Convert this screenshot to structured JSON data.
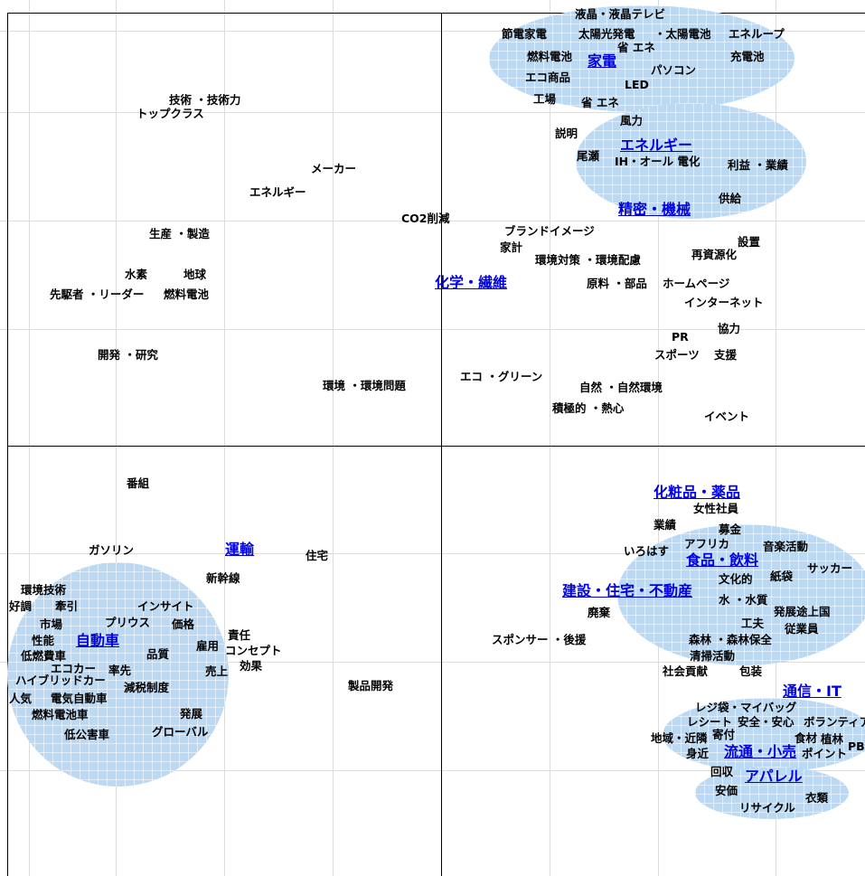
{
  "categories": [
    {
      "id": "kaden",
      "label": "家電"
    },
    {
      "id": "energy",
      "label": "エネルギー"
    },
    {
      "id": "seimitsu",
      "label": "精密・機械"
    },
    {
      "id": "kagaku",
      "label": "化学・繊維"
    },
    {
      "id": "unyu",
      "label": "運輸"
    },
    {
      "id": "jidosha",
      "label": "自動車"
    },
    {
      "id": "kesho",
      "label": "化粧品・薬品"
    },
    {
      "id": "shokuhin",
      "label": "食品・飲料"
    },
    {
      "id": "kensetsu",
      "label": "建設・住宅・不動産"
    },
    {
      "id": "tsushin",
      "label": "通信・IT"
    },
    {
      "id": "ryutsu",
      "label": "流通・小売"
    },
    {
      "id": "apparel",
      "label": "アパレル"
    }
  ],
  "words": [
    "液晶・液晶テレビ",
    "節電家電",
    "太陽光発電",
    "・太陽電池",
    "エネループ",
    "省 エネ",
    "燃料電池",
    "パソコン",
    "充電池",
    "エコ商品",
    "LED",
    "工場",
    "省 エネ",
    "風力",
    "説明",
    "尾瀬",
    "IH・オール 電化",
    "利益 ・業績",
    "供給",
    "技術 ・技術力",
    "トップクラス",
    "メーカー",
    "エネルギー",
    "CO2削減",
    "生産 ・製造",
    "ブランドイメージ",
    "家計",
    "設置",
    "再資源化",
    "環境対策 ・環境配慮",
    "水素",
    "地球",
    "先駆者 ・リーダー",
    "燃料電池",
    "原料 ・部品",
    "ホームページ",
    "インターネット",
    "協力",
    "PR",
    "スポーツ",
    "支援",
    "開発 ・研究",
    "エコ ・グリーン",
    "環境 ・環境問題",
    "自然 ・自然環境",
    "積極的 ・熱心",
    "イベント",
    "番組",
    "ガソリン",
    "住宅",
    "新幹線",
    "環境技術",
    "好調",
    "牽引",
    "インサイト",
    "市場",
    "プリウス",
    "価格",
    "責任",
    "性能",
    "雇用",
    "コンセプト",
    "品質",
    "低燃費車",
    "エコカー",
    "率先",
    "売上",
    "効果",
    "ハイブリッドカー",
    "減税制度",
    "人気",
    "電気自動車",
    "燃料電池車",
    "発展",
    "グローバル",
    "低公害車",
    "製品開発",
    "女性社員",
    "業績",
    "募金",
    "アフリカ",
    "いろはす",
    "音楽活動",
    "紙袋",
    "サッカー",
    "文化的",
    "廃棄",
    "水 ・水質",
    "発展途上国",
    "工夫",
    "従業員",
    "スポンサー ・後援",
    "森林 ・森林保全",
    "清掃活動",
    "社会貢献",
    "包装",
    "レジ袋・マイバッグ",
    "レシート",
    "安全・安心",
    "ボランティア",
    "寄付",
    "食材",
    "地域・近隣",
    "植林",
    "身近",
    "PB",
    "ポイント",
    "回収",
    "安価",
    "衣類",
    "リサイクル"
  ]
}
